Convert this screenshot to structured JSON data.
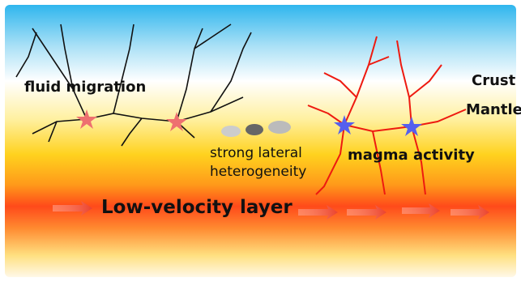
{
  "labels": {
    "fluid_migration": "fluid migration",
    "crust": "Crust",
    "mantle": "Mantle",
    "heterogeneity": [
      "strong lateral",
      "heterogeneity"
    ],
    "magma_activity": "magma activity",
    "low_velocity_layer": "Low-velocity layer"
  }
}
